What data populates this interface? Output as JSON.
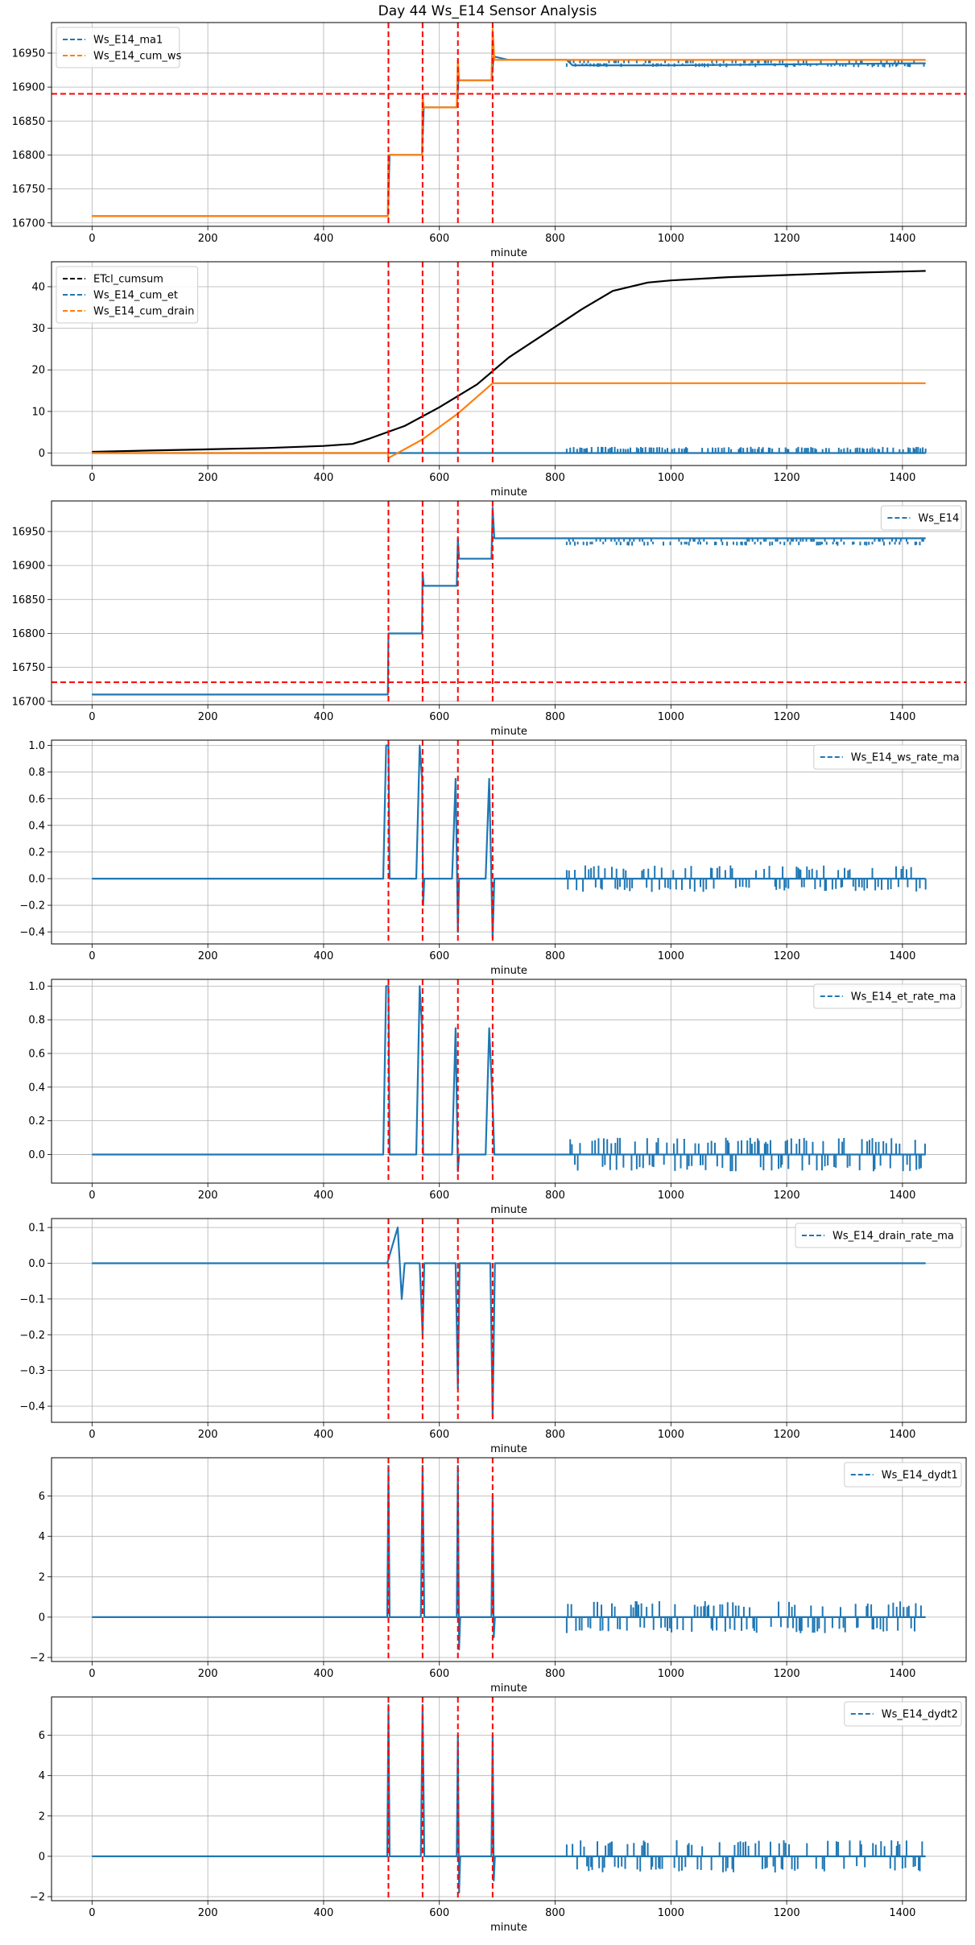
{
  "figure_title": "Day 44 Ws_E14 Sensor Analysis",
  "colors": {
    "blue": "#1f77b4",
    "orange": "#ff7f0e",
    "black": "#000000",
    "vline": "#ff0000",
    "grid": "#b0b0b0"
  },
  "chart_data": [
    {
      "type": "line",
      "xlabel": "minute",
      "xlim": [
        -70,
        1510
      ],
      "xticks": [
        0,
        200,
        400,
        600,
        800,
        1000,
        1200,
        1400
      ],
      "ylim": [
        16695,
        16995
      ],
      "yticks": [
        16700,
        16750,
        16800,
        16850,
        16900,
        16950
      ],
      "grid": true,
      "legend_loc": "upper-left",
      "vlines": [
        512,
        571,
        632,
        692
      ],
      "hlines": [
        16890
      ],
      "series": [
        {
          "name": "Ws_E14_ma1",
          "color": "blue",
          "points": [
            [
              0,
              16710
            ],
            [
              511,
              16710
            ],
            [
              514,
              16800
            ],
            [
              570,
              16800
            ],
            [
              573,
              16870
            ],
            [
              630,
              16870
            ],
            [
              633,
              16910
            ],
            [
              690,
              16910
            ],
            [
              694,
              16945
            ],
            [
              720,
              16940
            ],
            [
              820,
              16940
            ],
            [
              830,
              16932
            ],
            [
              1000,
              16932
            ],
            [
              1440,
              16935
            ]
          ]
        },
        {
          "name": "Ws_E14_cum_ws",
          "color": "orange",
          "points": [
            [
              0,
              16710
            ],
            [
              511,
              16710
            ],
            [
              512,
              16800
            ],
            [
              570,
              16800
            ],
            [
              571,
              16888
            ],
            [
              573,
              16870
            ],
            [
              630,
              16870
            ],
            [
              632,
              16940
            ],
            [
              634,
              16910
            ],
            [
              690,
              16910
            ],
            [
              692,
              16985
            ],
            [
              695,
              16940
            ],
            [
              1440,
              16940
            ]
          ]
        }
      ]
    },
    {
      "type": "line",
      "xlabel": "minute",
      "xlim": [
        -70,
        1510
      ],
      "xticks": [
        0,
        200,
        400,
        600,
        800,
        1000,
        1200,
        1400
      ],
      "ylim": [
        -3,
        46
      ],
      "yticks": [
        0,
        10,
        20,
        30,
        40
      ],
      "grid": true,
      "legend_loc": "upper-left",
      "vlines": [
        512,
        571,
        632,
        692
      ],
      "hlines": [],
      "series": [
        {
          "name": "ETcl_cumsum",
          "color": "black",
          "points": [
            [
              0,
              0.3
            ],
            [
              100,
              0.6
            ],
            [
              200,
              0.9
            ],
            [
              300,
              1.2
            ],
            [
              400,
              1.7
            ],
            [
              450,
              2.2
            ],
            [
              480,
              3.5
            ],
            [
              540,
              6.5
            ],
            [
              600,
              11
            ],
            [
              665,
              16.5
            ],
            [
              720,
              23
            ],
            [
              780,
              28.5
            ],
            [
              845,
              34.5
            ],
            [
              900,
              39
            ],
            [
              960,
              41
            ],
            [
              1000,
              41.5
            ],
            [
              1100,
              42.3
            ],
            [
              1200,
              42.8
            ],
            [
              1300,
              43.3
            ],
            [
              1440,
              43.8
            ]
          ]
        },
        {
          "name": "Ws_E14_cum_et",
          "color": "blue",
          "points": [
            [
              0,
              0
            ],
            [
              1440,
              0
            ]
          ]
        },
        {
          "name": "Ws_E14_cum_drain",
          "color": "orange",
          "points": [
            [
              0,
              0
            ],
            [
              511,
              0
            ],
            [
              512,
              -1.2
            ],
            [
              571,
              3.3
            ],
            [
              632,
              9.5
            ],
            [
              692,
              16.8
            ],
            [
              1440,
              16.8
            ]
          ]
        }
      ]
    },
    {
      "type": "line",
      "xlabel": "minute",
      "xlim": [
        -70,
        1510
      ],
      "xticks": [
        0,
        200,
        400,
        600,
        800,
        1000,
        1200,
        1400
      ],
      "ylim": [
        16695,
        16995
      ],
      "yticks": [
        16700,
        16750,
        16800,
        16850,
        16900,
        16950
      ],
      "grid": true,
      "legend_loc": "upper-right",
      "vlines": [
        512,
        571,
        632,
        692
      ],
      "hlines": [
        16728
      ],
      "series": [
        {
          "name": "Ws_E14",
          "color": "blue",
          "points": [
            [
              0,
              16710
            ],
            [
              511,
              16710
            ],
            [
              512,
              16800
            ],
            [
              570,
              16800
            ],
            [
              571,
              16890
            ],
            [
              573,
              16870
            ],
            [
              630,
              16870
            ],
            [
              632,
              16940
            ],
            [
              634,
              16910
            ],
            [
              690,
              16910
            ],
            [
              692,
              16985
            ],
            [
              695,
              16940
            ],
            [
              1440,
              16940
            ]
          ]
        }
      ]
    },
    {
      "type": "line",
      "xlabel": "minute",
      "xlim": [
        -70,
        1510
      ],
      "xticks": [
        0,
        200,
        400,
        600,
        800,
        1000,
        1200,
        1400
      ],
      "ylim": [
        -0.49,
        1.04
      ],
      "yticks": [
        -0.4,
        -0.2,
        0.0,
        0.2,
        0.4,
        0.6,
        0.8,
        1.0
      ],
      "grid": true,
      "legend_loc": "upper-right",
      "vlines": [
        512,
        571,
        632,
        692
      ],
      "hlines": [],
      "series": [
        {
          "name": "Ws_E14_ws_rate_ma",
          "color": "blue",
          "points": [
            [
              0,
              0
            ],
            [
              503,
              0
            ],
            [
              508,
              1.0
            ],
            [
              512,
              1.0
            ],
            [
              514,
              0
            ],
            [
              560,
              0
            ],
            [
              566,
              1.0
            ],
            [
              570,
              0.75
            ],
            [
              572,
              -0.2
            ],
            [
              574,
              0
            ],
            [
              622,
              0
            ],
            [
              628,
              0.75
            ],
            [
              632,
              -0.4
            ],
            [
              634,
              0
            ],
            [
              680,
              0
            ],
            [
              686,
              0.75
            ],
            [
              692,
              -0.45
            ],
            [
              695,
              0
            ],
            [
              820,
              0
            ],
            [
              1440,
              0
            ]
          ]
        }
      ]
    },
    {
      "type": "line",
      "xlabel": "minute",
      "xlim": [
        -70,
        1510
      ],
      "xticks": [
        0,
        200,
        400,
        600,
        800,
        1000,
        1200,
        1400
      ],
      "ylim": [
        -0.17,
        1.04
      ],
      "yticks": [
        0.0,
        0.2,
        0.4,
        0.6,
        0.8,
        1.0
      ],
      "grid": true,
      "legend_loc": "upper-right",
      "vlines": [
        512,
        571,
        632,
        692
      ],
      "hlines": [],
      "series": [
        {
          "name": "Ws_E14_et_rate_ma",
          "color": "blue",
          "points": [
            [
              0,
              0
            ],
            [
              503,
              0
            ],
            [
              508,
              1.0
            ],
            [
              512,
              1.0
            ],
            [
              514,
              0
            ],
            [
              560,
              0
            ],
            [
              566,
              1.0
            ],
            [
              570,
              0.75
            ],
            [
              572,
              0
            ],
            [
              622,
              0
            ],
            [
              628,
              0.75
            ],
            [
              632,
              -0.1
            ],
            [
              634,
              0
            ],
            [
              680,
              0
            ],
            [
              686,
              0.75
            ],
            [
              692,
              0.3
            ],
            [
              695,
              0
            ],
            [
              820,
              0
            ],
            [
              1440,
              0
            ]
          ]
        }
      ]
    },
    {
      "type": "line",
      "xlabel": "minute",
      "xlim": [
        -70,
        1510
      ],
      "xticks": [
        0,
        200,
        400,
        600,
        800,
        1000,
        1200,
        1400
      ],
      "ylim": [
        -0.445,
        0.125
      ],
      "yticks": [
        -0.4,
        -0.3,
        -0.2,
        -0.1,
        0.0,
        0.1
      ],
      "grid": true,
      "legend_loc": "upper-right",
      "vlines": [
        512,
        571,
        632,
        692
      ],
      "hlines": [],
      "series": [
        {
          "name": "Ws_E14_drain_rate_ma",
          "color": "blue",
          "points": [
            [
              0,
              0
            ],
            [
              510,
              0
            ],
            [
              528,
              0.1
            ],
            [
              535,
              -0.1
            ],
            [
              540,
              0
            ],
            [
              566,
              0
            ],
            [
              571,
              -0.2
            ],
            [
              574,
              0
            ],
            [
              628,
              0
            ],
            [
              632,
              -0.35
            ],
            [
              635,
              0
            ],
            [
              688,
              0
            ],
            [
              692,
              -0.43
            ],
            [
              696,
              0
            ],
            [
              1440,
              0
            ]
          ]
        }
      ]
    },
    {
      "type": "line",
      "xlabel": "minute",
      "xlim": [
        -70,
        1510
      ],
      "xticks": [
        0,
        200,
        400,
        600,
        800,
        1000,
        1200,
        1400
      ],
      "ylim": [
        -2.2,
        7.9
      ],
      "yticks": [
        -2,
        0,
        2,
        4,
        6
      ],
      "grid": true,
      "legend_loc": "upper-right",
      "vlines": [
        512,
        571,
        632,
        692
      ],
      "hlines": [],
      "series": [
        {
          "name": "Ws_E14_dydt1",
          "color": "blue",
          "points": [
            [
              0,
              0
            ],
            [
              510,
              0
            ],
            [
              512,
              7.5
            ],
            [
              514,
              0
            ],
            [
              568,
              0
            ],
            [
              571,
              7.5
            ],
            [
              574,
              0
            ],
            [
              630,
              0
            ],
            [
              632,
              7.5
            ],
            [
              634,
              -1.6
            ],
            [
              636,
              0
            ],
            [
              690,
              0
            ],
            [
              692,
              6.0
            ],
            [
              694,
              -1.0
            ],
            [
              696,
              0
            ],
            [
              1440,
              0
            ]
          ]
        }
      ]
    },
    {
      "type": "line",
      "xlabel": "minute",
      "xlim": [
        -70,
        1510
      ],
      "xticks": [
        0,
        200,
        400,
        600,
        800,
        1000,
        1200,
        1400
      ],
      "ylim": [
        -2.2,
        7.9
      ],
      "yticks": [
        -2,
        0,
        2,
        4,
        6
      ],
      "grid": true,
      "legend_loc": "upper-right",
      "vlines": [
        512,
        571,
        632,
        692
      ],
      "hlines": [],
      "series": [
        {
          "name": "Ws_E14_dydt2",
          "color": "blue",
          "points": [
            [
              0,
              0
            ],
            [
              510,
              0
            ],
            [
              512,
              7.5
            ],
            [
              514,
              0
            ],
            [
              568,
              0
            ],
            [
              571,
              7.5
            ],
            [
              574,
              0
            ],
            [
              630,
              0
            ],
            [
              632,
              6.0
            ],
            [
              634,
              -1.8
            ],
            [
              636,
              0
            ],
            [
              690,
              0
            ],
            [
              692,
              6.0
            ],
            [
              694,
              -1.2
            ],
            [
              696,
              0
            ],
            [
              1440,
              0
            ]
          ]
        }
      ]
    }
  ]
}
